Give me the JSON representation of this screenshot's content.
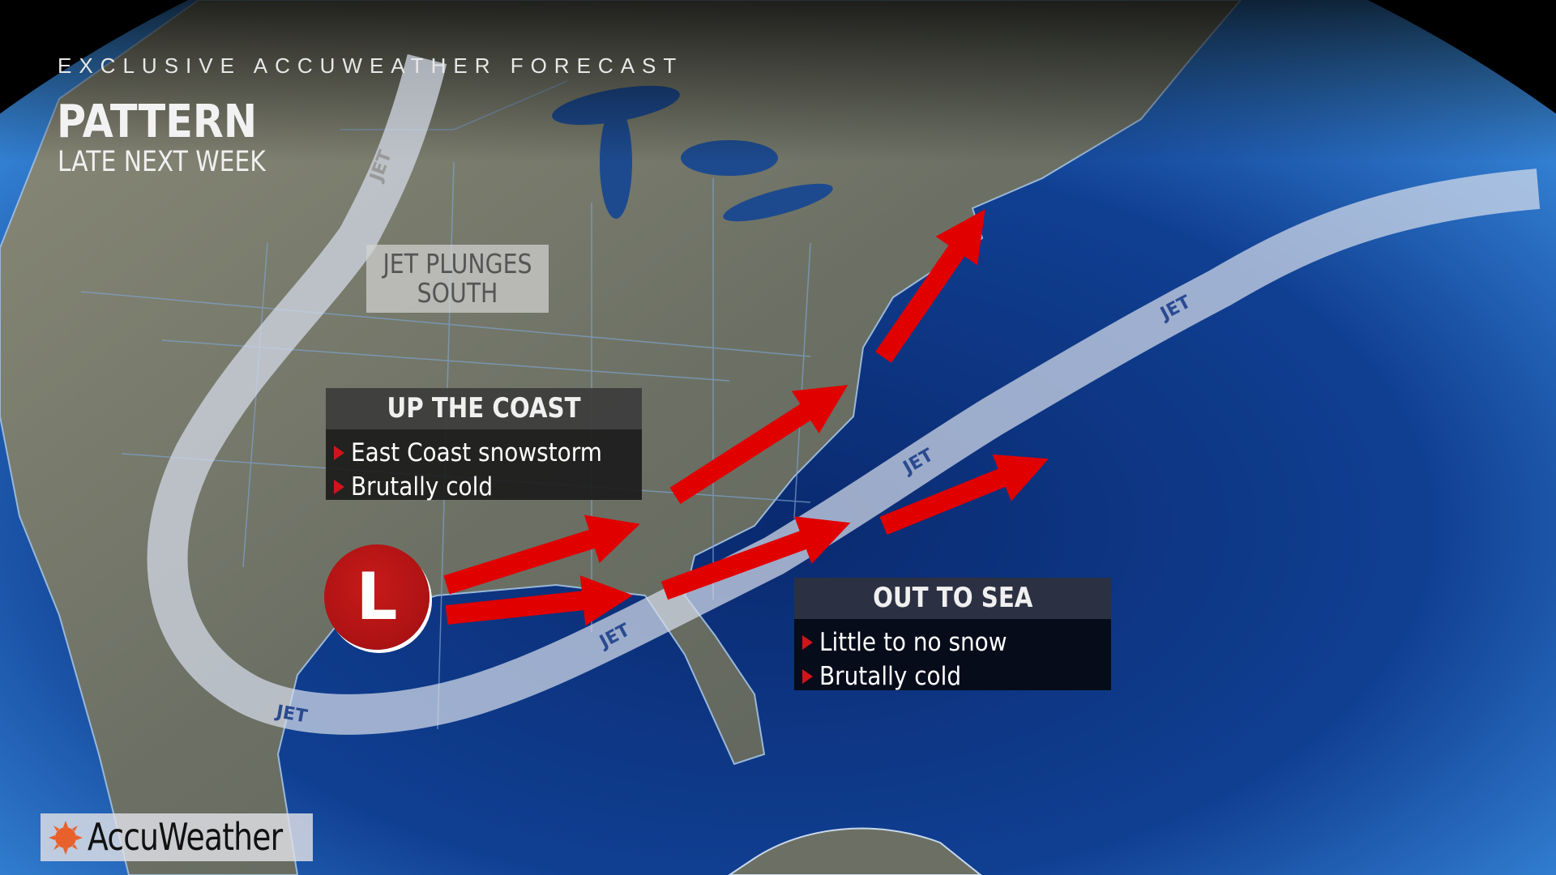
{
  "header": {
    "kicker": "EXCLUSIVE ACCUWEATHER FORECAST",
    "title": "PATTERN",
    "subtitle": "LATE NEXT WEEK"
  },
  "map": {
    "jet_label_line1": "JET PLUNGES",
    "jet_label_line2": "SOUTH",
    "jet_stream_text": "JET",
    "low_pressure_symbol": "L",
    "colors": {
      "arrow": "#e00000",
      "jet": "#c8d2e6",
      "low": "#b01414",
      "ocean": "#0d3a8a"
    }
  },
  "up_the_coast": {
    "title": "UP THE COAST",
    "items": [
      "East Coast snowstorm",
      "Brutally cold"
    ]
  },
  "out_to_sea": {
    "title": "OUT TO SEA",
    "items": [
      "Little to no snow",
      "Brutally cold"
    ]
  },
  "logo": {
    "text": "AccuWeather",
    "icon": "sun-icon",
    "color": "#e8602c"
  }
}
